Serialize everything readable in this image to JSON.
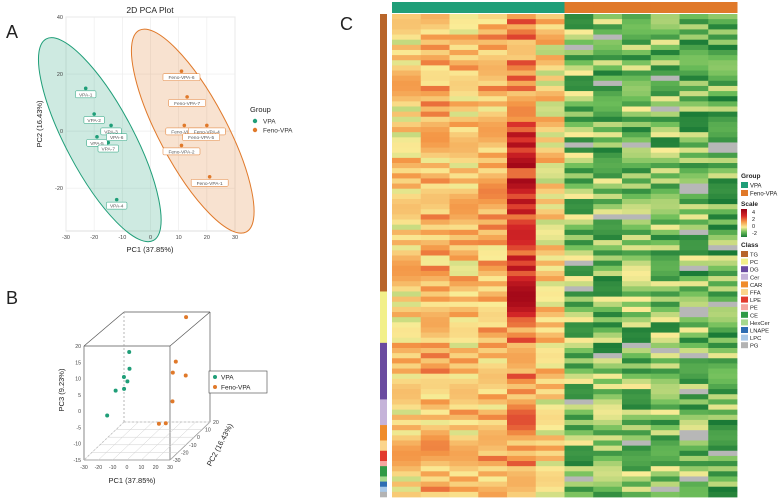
{
  "panels": {
    "a": "A",
    "b": "B",
    "c": "C"
  },
  "colors": {
    "vpa": "#1f9e78",
    "feno": "#e0792a"
  },
  "chart_data": [
    {
      "type": "scatter",
      "title": "2D PCA Plot",
      "xlabel": "PC1 (37.85%)",
      "ylabel": "PC2 (16.43%)",
      "xlim": [
        -30,
        30
      ],
      "ylim": [
        -35,
        40
      ],
      "xticks": [
        -30,
        -20,
        -10,
        0,
        10,
        20,
        30
      ],
      "yticks": [
        -20,
        0,
        20,
        40
      ],
      "grid": true,
      "legend": {
        "title": "Group",
        "position": "right",
        "entries": [
          "VPA",
          "Feno-VPA"
        ]
      },
      "series": [
        {
          "name": "VPA",
          "points": [
            {
              "label": "VPA-1",
              "x": -23,
              "y": 15
            },
            {
              "label": "VPA-2",
              "x": -20,
              "y": 6
            },
            {
              "label": "VPA-3",
              "x": -14,
              "y": 2
            },
            {
              "label": "VPA-4",
              "x": -12,
              "y": -24
            },
            {
              "label": "VPA-5",
              "x": -19,
              "y": -2
            },
            {
              "label": "VPA-6",
              "x": -12,
              "y": 0
            },
            {
              "label": "VPA-7",
              "x": -15,
              "y": -4
            }
          ]
        },
        {
          "name": "Feno-VPA",
          "points": [
            {
              "label": "Feno-VPA-1",
              "x": 21,
              "y": -16
            },
            {
              "label": "Feno-VPA-2",
              "x": 11,
              "y": -5
            },
            {
              "label": "Feno-VPA-3",
              "x": 12,
              "y": 2
            },
            {
              "label": "Feno-VPA-4",
              "x": 20,
              "y": 2
            },
            {
              "label": "Feno-VPA-5",
              "x": 18,
              "y": 0
            },
            {
              "label": "Feno-VPA-6",
              "x": 11,
              "y": 21
            },
            {
              "label": "Feno-VPA-7",
              "x": 13,
              "y": 12
            }
          ]
        }
      ],
      "ellipses": [
        {
          "group": "VPA",
          "cx": -18,
          "cy": -3,
          "rx_axis": 12,
          "ry_axis": 40,
          "angle": -28
        },
        {
          "group": "Feno-VPA",
          "cx": 15,
          "cy": 0,
          "rx_axis": 12,
          "ry_axis": 40,
          "angle": -28
        }
      ]
    },
    {
      "type": "scatter",
      "subtype": "3d",
      "xlabel": "PC1 (37.85%)",
      "ylabel": "PC2 (16.43%)",
      "zlabel": "PC3 (9.23%)",
      "xticks": [
        -30,
        -20,
        -10,
        0,
        10,
        20,
        30
      ],
      "yticks": [
        -30,
        -20,
        -10,
        0,
        10,
        20
      ],
      "zticks": [
        -15,
        -10,
        -5,
        0,
        5,
        10,
        15,
        20
      ],
      "xlim": [
        -30,
        30
      ],
      "ylim": [
        -30,
        20
      ],
      "zlim": [
        -15,
        20
      ],
      "legend": {
        "position": "right",
        "entries": [
          "VPA",
          "Feno-VPA"
        ]
      },
      "series": [
        {
          "name": "VPA",
          "points": [
            [
              -18,
              5,
              10
            ],
            [
              -20,
              2,
              3
            ],
            [
              -15,
              0,
              6
            ],
            [
              -23,
              -3,
              0
            ],
            [
              -16,
              -5,
              1
            ],
            [
              -25,
              -10,
              -6
            ],
            [
              -12,
              -8,
              4
            ]
          ]
        },
        {
          "name": "Feno-VPA",
          "points": [
            [
              20,
              8,
              20
            ],
            [
              24,
              -12,
              11
            ],
            [
              18,
              -5,
              6
            ],
            [
              22,
              4,
              3
            ],
            [
              15,
              0,
              -4
            ],
            [
              12,
              -3,
              -10
            ],
            [
              10,
              -8,
              -9
            ]
          ]
        }
      ]
    },
    {
      "type": "heatmap",
      "legend": {
        "group_title": "Group",
        "groups": [
          {
            "name": "VPA",
            "color": "#1f9e78"
          },
          {
            "name": "Feno-VPA",
            "color": "#e0792a"
          }
        ],
        "scale_title": "Scale",
        "scale_ticks": [
          "4",
          "2",
          "0",
          "-2"
        ],
        "class_title": "Class",
        "classes": [
          {
            "name": "TG",
            "color": "#b8652a"
          },
          {
            "name": "PC",
            "color": "#f2f08a"
          },
          {
            "name": "DG",
            "color": "#6a4ba0"
          },
          {
            "name": "Cer",
            "color": "#c5b3d9"
          },
          {
            "name": "CAR",
            "color": "#f08c2a"
          },
          {
            "name": "FFA",
            "color": "#fbd58c"
          },
          {
            "name": "LPE",
            "color": "#e23a2e"
          },
          {
            "name": "PE",
            "color": "#f4a6a0"
          },
          {
            "name": "CE",
            "color": "#2f9a46"
          },
          {
            "name": "HexCer",
            "color": "#a6d98e"
          },
          {
            "name": "LNAPE",
            "color": "#2d6db3"
          },
          {
            "name": "LPC",
            "color": "#a8c8e8"
          },
          {
            "name": "PG",
            "color": "#b3b3b3"
          }
        ]
      },
      "column_groups": [
        "VPA",
        "VPA",
        "VPA",
        "VPA",
        "VPA",
        "VPA",
        "Feno-VPA",
        "Feno-VPA",
        "Feno-VPA",
        "Feno-VPA",
        "Feno-VPA",
        "Feno-VPA"
      ],
      "row_classes": [
        [
          "TG",
          54
        ],
        [
          "PC",
          10
        ],
        [
          "DG",
          11
        ],
        [
          "Cer",
          5
        ],
        [
          "CAR",
          3
        ],
        [
          "FFA",
          2
        ],
        [
          "LPE",
          2
        ],
        [
          "PE",
          1
        ],
        [
          "CE",
          2
        ],
        [
          "HexCer",
          1
        ],
        [
          "LNAPE",
          1
        ],
        [
          "LPC",
          1
        ],
        [
          "PG",
          1
        ]
      ],
      "missing_value_color": "#b7b7b7",
      "seed": 7
    }
  ]
}
